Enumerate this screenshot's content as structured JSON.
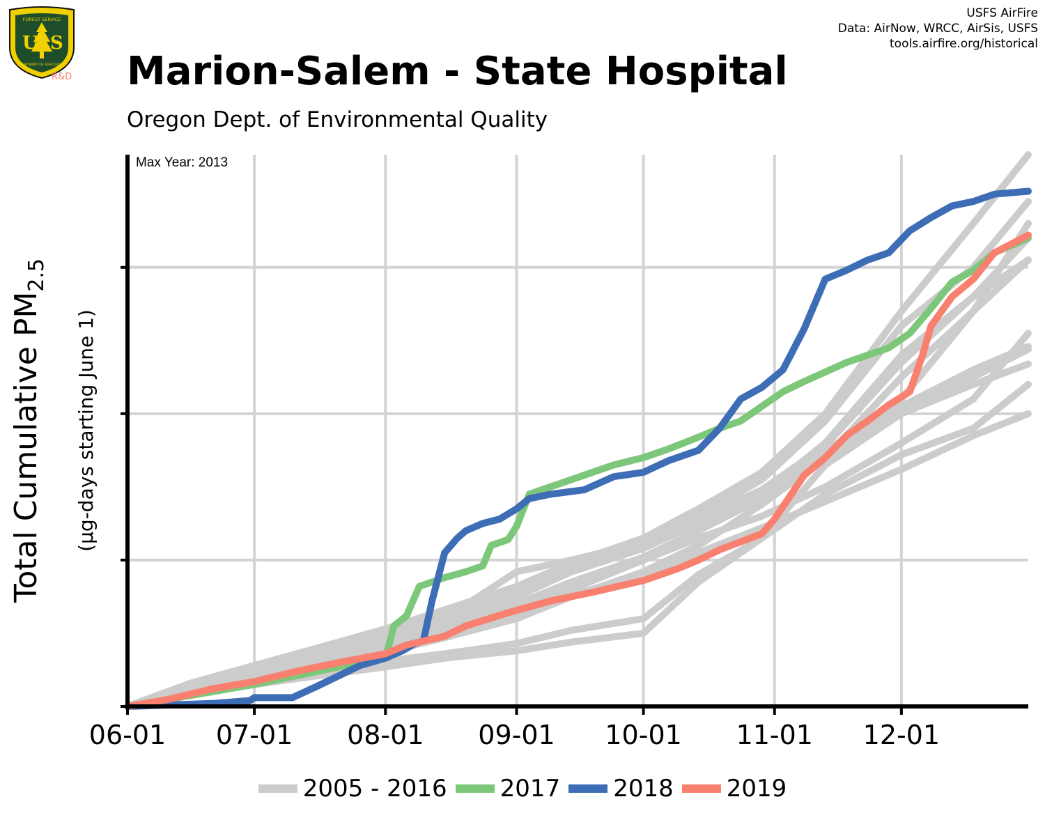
{
  "header": {
    "title": "Marion-Salem - State Hospital",
    "subtitle": "Oregon Dept. of Environmental Quality",
    "credits": [
      "USFS AirFire",
      "Data: AirNow, WRCC, AirSis, USFS",
      "tools.airfire.org/historical"
    ],
    "logo": {
      "top_text": "FOREST SERVICE",
      "letters": "US",
      "bottom_text": "DEPARTMENT OF AGRICULTURE",
      "tag": "R&D"
    }
  },
  "chart_data": {
    "type": "line",
    "ylabel_main": "Total Cumulative PM",
    "ylabel_sub": "2.5",
    "ylabel_units": "(µg-days starting June 1)",
    "annotation": "Max Year: 2013",
    "x_tick_labels": [
      "06-01",
      "07-01",
      "08-01",
      "09-01",
      "10-01",
      "11-01",
      "12-01"
    ],
    "x_tick_days": [
      0,
      30,
      61,
      92,
      122,
      153,
      183
    ],
    "xlim_days": [
      0,
      213
    ],
    "ylim": [
      0,
      3.77
    ],
    "y_gridlines": [
      1,
      2,
      3
    ],
    "colors": {
      "historical": "#cccccc",
      "y2017": "#7dc77a",
      "y2018": "#3d6db5",
      "y2019": "#f97f6e",
      "grid": "#d3d3d3",
      "axis": "#000000"
    },
    "legend": [
      {
        "label": "2005 - 2016",
        "color": "#cccccc"
      },
      {
        "label": "2017",
        "color": "#7dc77a"
      },
      {
        "label": "2018",
        "color": "#3d6db5"
      },
      {
        "label": "2019",
        "color": "#f97f6e"
      }
    ],
    "historical_series": [
      {
        "x": [
          0,
          15,
          30,
          45,
          61,
          75,
          92,
          105,
          122,
          135,
          150,
          165,
          183,
          200,
          213
        ],
        "y": [
          0,
          0.14,
          0.22,
          0.32,
          0.43,
          0.52,
          0.62,
          0.8,
          1.0,
          1.2,
          1.45,
          1.75,
          2.05,
          2.3,
          2.46
        ]
      },
      {
        "x": [
          0,
          15,
          30,
          45,
          61,
          75,
          92,
          105,
          122,
          135,
          150,
          165,
          183,
          200,
          213
        ],
        "y": [
          0,
          0.11,
          0.19,
          0.27,
          0.37,
          0.47,
          0.6,
          0.75,
          0.92,
          1.1,
          1.38,
          1.7,
          2.25,
          2.7,
          3.05
        ]
      },
      {
        "x": [
          0,
          15,
          30,
          45,
          61,
          75,
          92,
          105,
          122,
          135,
          150,
          165,
          183,
          200,
          213
        ],
        "y": [
          0,
          0.12,
          0.21,
          0.3,
          0.4,
          0.6,
          0.92,
          1.0,
          1.12,
          1.28,
          1.48,
          1.78,
          2.35,
          2.8,
          3.2
        ]
      },
      {
        "x": [
          0,
          15,
          30,
          45,
          61,
          75,
          92,
          105,
          122,
          135,
          150,
          165,
          183,
          200,
          213
        ],
        "y": [
          0,
          0.1,
          0.18,
          0.25,
          0.31,
          0.36,
          0.43,
          0.52,
          0.6,
          0.9,
          1.15,
          1.45,
          1.72,
          1.9,
          2.2
        ]
      },
      {
        "x": [
          0,
          15,
          30,
          45,
          61,
          75,
          92,
          105,
          122,
          135,
          150,
          165,
          183,
          200,
          213
        ],
        "y": [
          0,
          0.08,
          0.15,
          0.21,
          0.27,
          0.33,
          0.38,
          0.44,
          0.5,
          0.85,
          1.15,
          1.65,
          2.0,
          2.2,
          2.34
        ]
      },
      {
        "x": [
          0,
          15,
          30,
          45,
          61,
          75,
          92,
          105,
          122,
          135,
          150,
          165,
          183,
          200,
          213
        ],
        "y": [
          0,
          0.13,
          0.23,
          0.33,
          0.45,
          0.58,
          0.75,
          0.92,
          1.08,
          1.25,
          1.45,
          1.7,
          2.0,
          2.25,
          2.44
        ]
      },
      {
        "x": [
          0,
          15,
          30,
          45,
          61,
          75,
          92,
          105,
          122,
          135,
          150,
          165,
          183,
          200,
          213
        ],
        "y": [
          0,
          0.09,
          0.17,
          0.26,
          0.36,
          0.5,
          0.7,
          0.85,
          1.0,
          1.15,
          1.3,
          1.5,
          1.8,
          2.1,
          2.55
        ]
      },
      {
        "x": [
          0,
          15,
          30,
          45,
          61,
          75,
          92,
          105,
          122,
          135,
          150,
          165,
          183,
          200,
          213
        ],
        "y": [
          0,
          0.12,
          0.2,
          0.29,
          0.39,
          0.5,
          0.65,
          0.82,
          1.0,
          1.2,
          1.45,
          1.8,
          2.4,
          2.8,
          3.05
        ]
      },
      {
        "x": [
          0,
          15,
          30,
          45,
          61,
          75,
          92,
          105,
          122,
          135,
          150,
          165,
          183,
          200,
          213
        ],
        "y": [
          0,
          0.15,
          0.25,
          0.36,
          0.5,
          0.62,
          0.78,
          0.95,
          1.12,
          1.3,
          1.55,
          1.95,
          2.6,
          3.0,
          3.45
        ]
      },
      {
        "x": [
          0,
          15,
          30,
          45,
          61,
          75,
          92,
          105,
          122,
          135,
          150,
          165,
          183,
          200,
          213
        ],
        "y": [
          0,
          0.1,
          0.19,
          0.28,
          0.38,
          0.48,
          0.62,
          0.76,
          0.9,
          1.05,
          1.22,
          1.4,
          1.62,
          1.85,
          2.0
        ]
      },
      {
        "x": [
          0,
          15,
          30,
          45,
          61,
          75,
          92,
          105,
          122,
          135,
          150,
          165,
          183,
          200,
          213
        ],
        "y": [
          0,
          0.12,
          0.21,
          0.31,
          0.42,
          0.55,
          0.7,
          0.85,
          1.02,
          1.2,
          1.42,
          1.68,
          2.1,
          2.7,
          3.3
        ]
      },
      {
        "x": [
          0,
          15,
          30,
          45,
          61,
          75,
          92,
          105,
          122,
          135,
          150,
          165,
          183,
          200,
          213
        ],
        "y": [
          0,
          0.16,
          0.28,
          0.4,
          0.53,
          0.66,
          0.82,
          0.98,
          1.15,
          1.35,
          1.6,
          2.0,
          2.7,
          3.3,
          3.77
        ]
      }
    ],
    "series": [
      {
        "name": "2017",
        "color": "#7dc77a",
        "x": [
          0,
          10,
          20,
          30,
          45,
          55,
          61,
          63,
          66,
          69,
          75,
          80,
          84,
          86,
          90,
          92,
          95,
          100,
          105,
          110,
          115,
          122,
          128,
          135,
          140,
          145,
          150,
          155,
          160,
          170,
          180,
          185,
          190,
          195,
          200,
          205,
          213
        ],
        "y": [
          0,
          0.05,
          0.1,
          0.15,
          0.24,
          0.3,
          0.33,
          0.55,
          0.62,
          0.82,
          0.88,
          0.92,
          0.96,
          1.1,
          1.14,
          1.23,
          1.45,
          1.5,
          1.55,
          1.6,
          1.65,
          1.7,
          1.76,
          1.84,
          1.9,
          1.95,
          2.05,
          2.15,
          2.22,
          2.35,
          2.45,
          2.55,
          2.72,
          2.9,
          2.98,
          3.1,
          3.2
        ]
      },
      {
        "name": "2018",
        "color": "#3d6db5",
        "x": [
          0,
          10,
          20,
          29,
          30,
          39,
          45,
          55,
          61,
          65,
          68,
          70,
          72,
          75,
          78,
          80,
          84,
          88,
          92,
          95,
          100,
          108,
          115,
          122,
          128,
          135,
          140,
          145,
          150,
          155,
          160,
          165,
          170,
          175,
          180,
          185,
          190,
          195,
          200,
          205,
          213
        ],
        "y": [
          0,
          0.01,
          0.02,
          0.04,
          0.06,
          0.06,
          0.14,
          0.28,
          0.33,
          0.38,
          0.43,
          0.45,
          0.72,
          1.05,
          1.15,
          1.2,
          1.25,
          1.28,
          1.35,
          1.42,
          1.45,
          1.48,
          1.57,
          1.6,
          1.68,
          1.75,
          1.9,
          2.1,
          2.18,
          2.3,
          2.58,
          2.92,
          2.98,
          3.05,
          3.1,
          3.25,
          3.34,
          3.42,
          3.45,
          3.5,
          3.52
        ]
      },
      {
        "name": "2019",
        "color": "#f97f6e",
        "x": [
          0,
          10,
          20,
          30,
          40,
          50,
          61,
          66,
          75,
          80,
          90,
          100,
          110,
          122,
          130,
          135,
          140,
          150,
          153,
          160,
          165,
          170,
          175,
          180,
          185,
          188,
          190,
          195,
          200,
          205,
          213
        ],
        "y": [
          0,
          0.05,
          0.12,
          0.17,
          0.24,
          0.3,
          0.36,
          0.42,
          0.48,
          0.55,
          0.64,
          0.72,
          0.78,
          0.86,
          0.94,
          1.0,
          1.07,
          1.18,
          1.28,
          1.58,
          1.7,
          1.85,
          1.95,
          2.06,
          2.15,
          2.4,
          2.6,
          2.8,
          2.92,
          3.1,
          3.22
        ]
      }
    ]
  }
}
